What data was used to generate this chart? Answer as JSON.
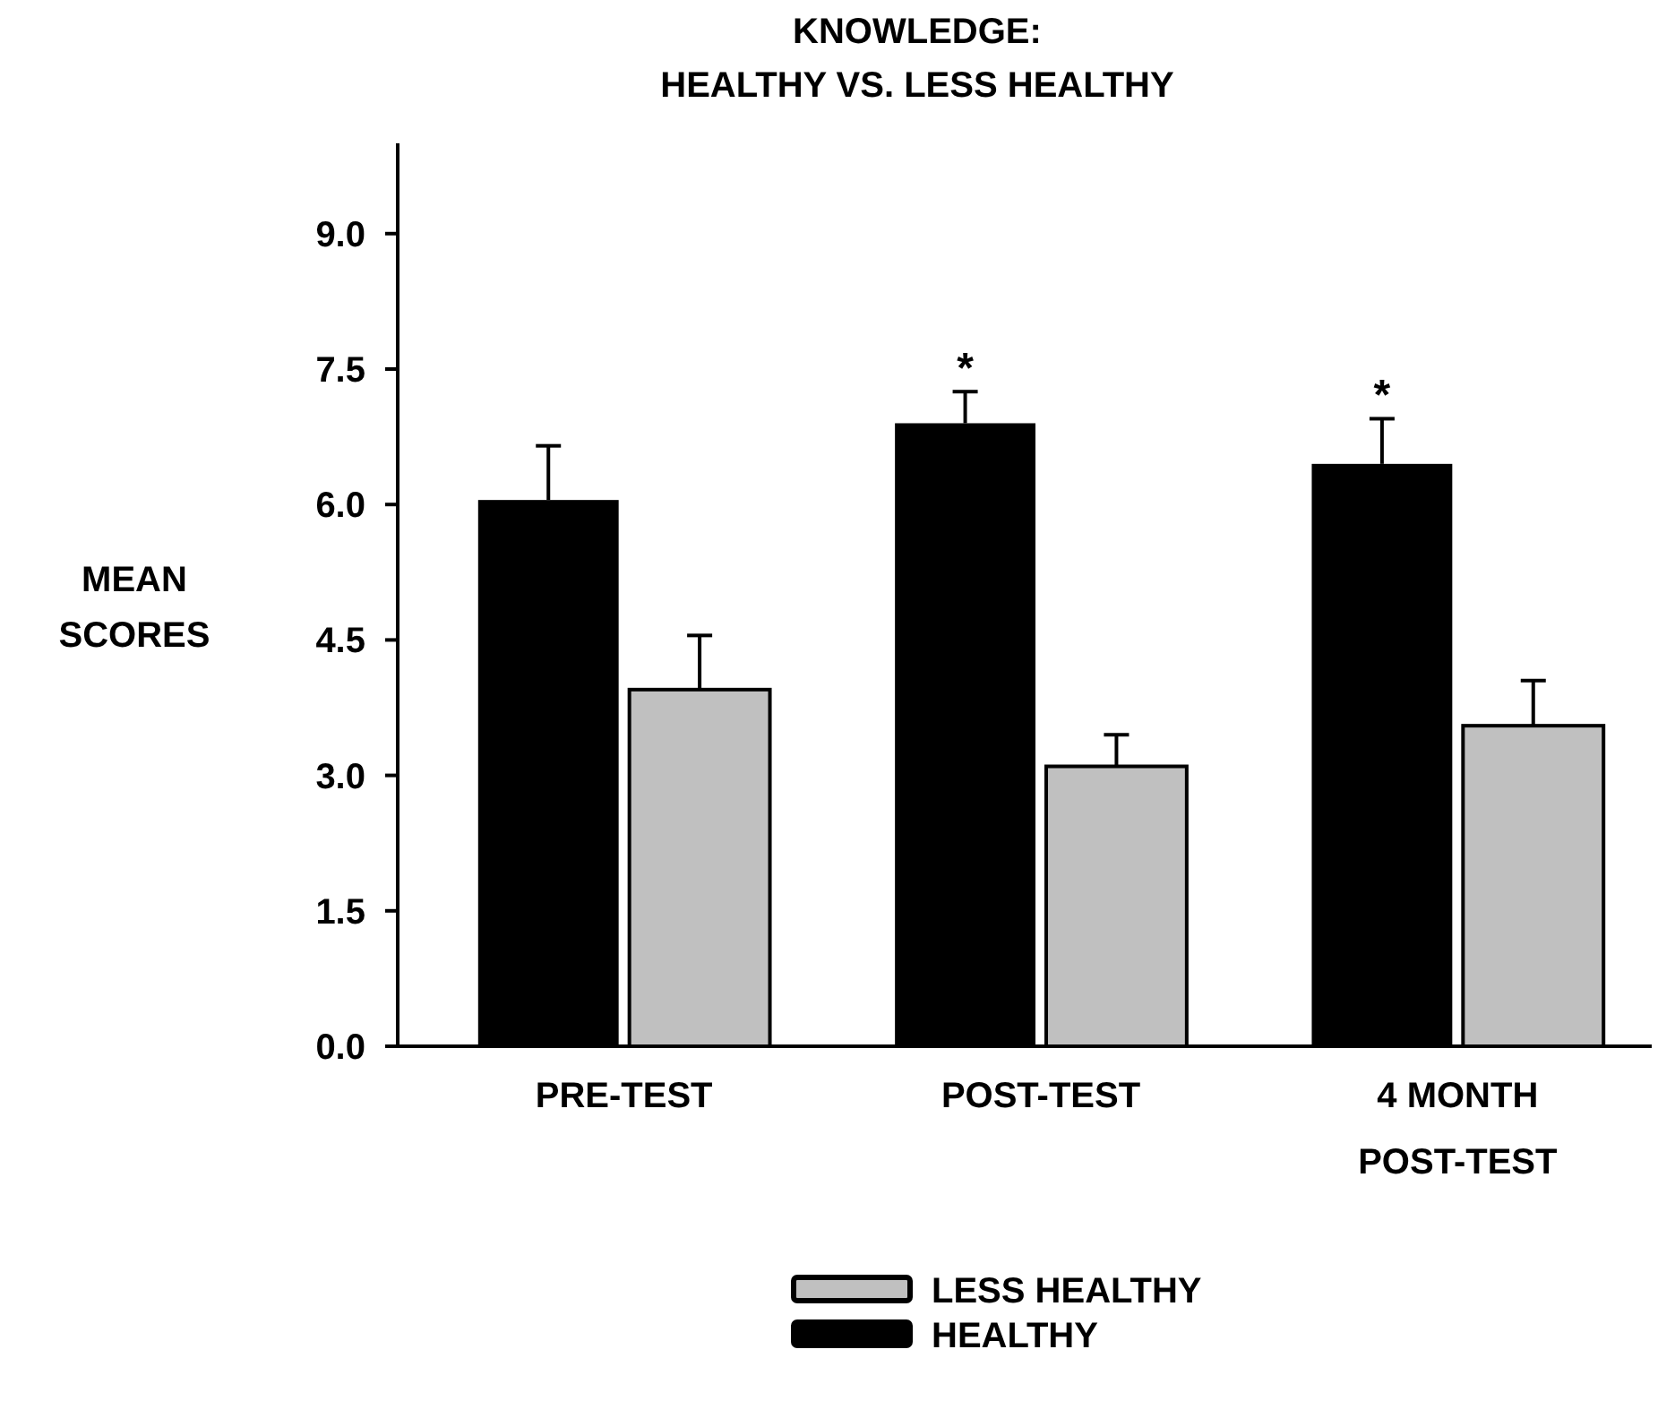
{
  "chart_data": {
    "type": "bar",
    "title": "KNOWLEDGE:\nHEALTHY VS. LESS HEALTHY",
    "ylabel": "MEAN SCORES",
    "categories": [
      "PRE-TEST",
      "POST-TEST",
      "4 MONTH POST-TEST"
    ],
    "series": [
      {
        "name": "HEALTHY",
        "color": "#000000",
        "values": [
          6.05,
          6.9,
          6.45
        ],
        "errors": [
          0.6,
          0.35,
          0.5
        ]
      },
      {
        "name": "LESS HEALTHY",
        "color": "#c0c0c0",
        "values": [
          3.95,
          3.1,
          3.55
        ],
        "errors": [
          0.6,
          0.35,
          0.5
        ]
      }
    ],
    "ylim": [
      0,
      10
    ],
    "yticks": [
      {
        "value": 0,
        "label": "0.0"
      },
      {
        "value": 1.5,
        "label": "1.5"
      },
      {
        "value": 3,
        "label": "3.0"
      },
      {
        "value": 4.5,
        "label": "4.5"
      },
      {
        "value": 6,
        "label": "6.0"
      },
      {
        "value": 7.5,
        "label": "7.5"
      },
      {
        "value": 9,
        "label": "9.0"
      }
    ],
    "annotations": [
      "*",
      "*"
    ],
    "legend": "bottom",
    "grid": false
  }
}
